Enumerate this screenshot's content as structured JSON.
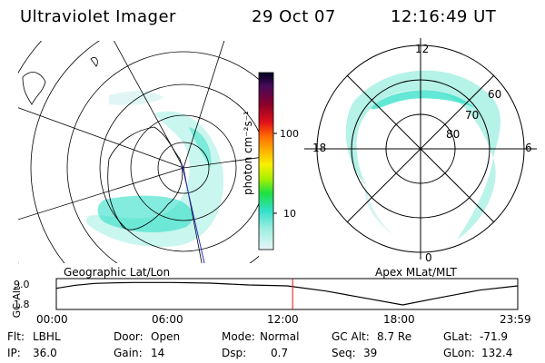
{
  "header": {
    "instrument": "Ultraviolet Imager",
    "date": "29 Oct 07",
    "time": "12:16:49 UT"
  },
  "left_map": {
    "caption": "Geographic Lat/Lon"
  },
  "right_map": {
    "caption": "Apex MLat/MLT",
    "mlt_labels": [
      "12",
      "18",
      "6",
      "0"
    ],
    "mlat_labels": [
      "60",
      "70",
      "80"
    ]
  },
  "colorbar": {
    "unit_label": "photon cm⁻²s⁻¹",
    "ticks": [
      "100",
      "10"
    ],
    "colors": [
      "#000020",
      "#4a0a5a",
      "#8a0028",
      "#e0101a",
      "#ff6a00",
      "#ffb000",
      "#f8f000",
      "#a8f000",
      "#20e040",
      "#30e0c8",
      "#9ceee0",
      "#e6f6f6"
    ]
  },
  "alt_plot": {
    "y_label": "GC Alt",
    "y_ticks": [
      "9.0",
      "1.8"
    ],
    "x_ticks": [
      "00:00",
      "06:00",
      "12:00",
      "18:00",
      "23:59"
    ],
    "marker_color": "#e01010"
  },
  "status": {
    "flt_label": "Flt:",
    "flt_value": "LBHL",
    "ip_label": "IP:",
    "ip_value": "36.0",
    "door_label": "Door:",
    "door_value": "Open",
    "gain_label": "Gain:",
    "gain_value": "14",
    "mode_label": "Mode:",
    "mode_value": "Normal",
    "dsp_label": "Dsp:",
    "dsp_value": "0.7",
    "gcalt_label": "GC Alt:",
    "gcalt_value": "8.7 Re",
    "seq_label": "Seq:",
    "seq_value": "39",
    "glat_label": "GLat:",
    "glat_value": "-71.9",
    "glon_label": "GLon:",
    "glon_value": "132.4"
  },
  "chart_data": [
    {
      "type": "heatmap",
      "projection": "polar",
      "coordinates": "Geographic Lat/Lon"
    },
    {
      "type": "heatmap",
      "projection": "polar",
      "coordinates": "Apex MLat/MLT",
      "mlt_ticks": [
        "12",
        "18",
        "6",
        "0"
      ],
      "mlat_rings": [
        60,
        70,
        80
      ]
    },
    {
      "type": "colorbar",
      "scale": "log",
      "unit": "photon cm⁻²s⁻¹",
      "ticks": [
        10,
        100
      ]
    },
    {
      "type": "line",
      "ylabel": "GC Alt",
      "y_ticks": [
        1.8,
        9.0
      ],
      "x_ticks": [
        "00:00",
        "06:00",
        "12:00",
        "18:00",
        "23:59"
      ],
      "x_hours": [
        0,
        1,
        2,
        3,
        4,
        6,
        8,
        10,
        12,
        14,
        16,
        18,
        20,
        22,
        23.98
      ],
      "y": [
        7.3,
        8.3,
        8.9,
        9.1,
        9.2,
        9.2,
        9.0,
        8.4,
        8.1,
        6.4,
        4.1,
        1.8,
        4.3,
        6.7,
        8.1
      ],
      "current_time": "12:16:49"
    }
  ]
}
